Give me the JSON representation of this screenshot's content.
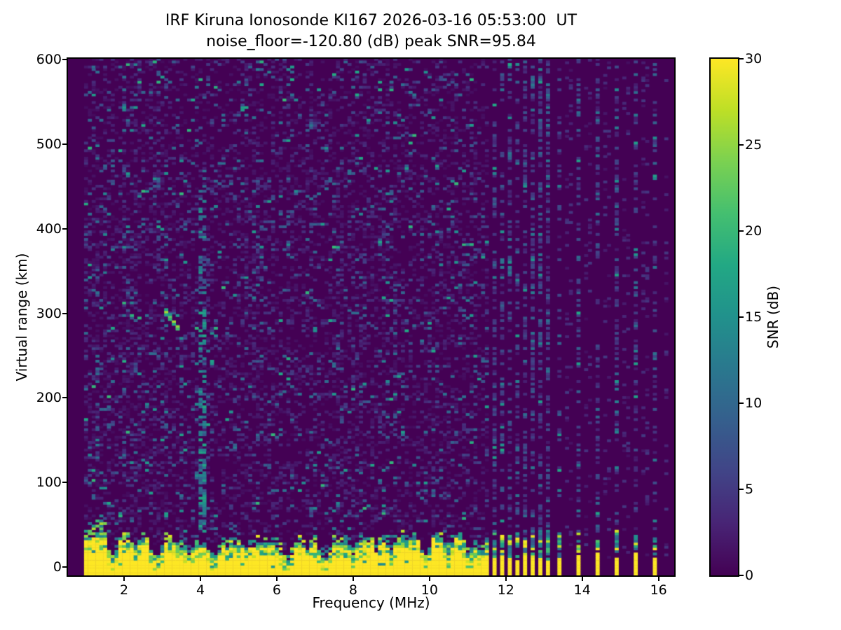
{
  "chart": {
    "title": "IRF Kiruna Ionosonde KI167 2026-03-16 05:53:00  UT",
    "subtitle": "noise_floor=-120.80 (dB) peak SNR=95.84",
    "xlabel": "Frequency (MHz)",
    "ylabel": "Virtual range (km)",
    "colorbar_label": "SNR (dB)"
  },
  "chart_data": {
    "type": "heatmap",
    "title": "IRF Kiruna Ionosonde KI167 2026-03-16 05:53:00  UT",
    "subtitle": "noise_floor=-120.80 (dB) peak SNR=95.84",
    "xlabel": "Frequency (MHz)",
    "ylabel": "Virtual range (km)",
    "xlim": [
      0.53,
      16.41
    ],
    "ylim": [
      -10,
      601
    ],
    "x_ticks": [
      2,
      4,
      6,
      8,
      10,
      12,
      14,
      16
    ],
    "y_ticks": [
      0,
      100,
      200,
      300,
      400,
      500,
      600
    ],
    "noise_floor_db": -120.8,
    "peak_snr_db": 95.84,
    "colorbar": {
      "label": "SNR (dB)",
      "min": 0,
      "max": 30,
      "ticks": [
        0,
        5,
        10,
        15,
        20,
        25,
        30
      ]
    },
    "colormap": {
      "name": "viridis",
      "stops": [
        {
          "t": 0.0,
          "color": "#440154"
        },
        {
          "t": 0.1,
          "color": "#482475"
        },
        {
          "t": 0.2,
          "color": "#414487"
        },
        {
          "t": 0.3,
          "color": "#355f8d"
        },
        {
          "t": 0.4,
          "color": "#2a788e"
        },
        {
          "t": 0.5,
          "color": "#21918c"
        },
        {
          "t": 0.6,
          "color": "#22a884"
        },
        {
          "t": 0.7,
          "color": "#44bf70"
        },
        {
          "t": 0.8,
          "color": "#7ad151"
        },
        {
          "t": 0.9,
          "color": "#bddf26"
        },
        {
          "t": 1.0,
          "color": "#fde725"
        }
      ]
    },
    "sweep": {
      "f_start": 1.0,
      "f_end": 11.55,
      "f_step": 0.1,
      "range_step_km": 3
    },
    "ground_clutter": {
      "top_km_base": 26,
      "top_km_min": 20,
      "top_km_max": 33,
      "transition_km": 14,
      "dips": [
        {
          "f": 1.7,
          "top_km": 4
        },
        {
          "f": 2.3,
          "top_km": 14
        },
        {
          "f": 2.85,
          "top_km": 6
        },
        {
          "f": 3.7,
          "top_km": 5
        },
        {
          "f": 4.35,
          "top_km": 7
        },
        {
          "f": 5.2,
          "top_km": 15
        },
        {
          "f": 6.25,
          "top_km": 4
        },
        {
          "f": 6.8,
          "top_km": 13
        },
        {
          "f": 7.25,
          "top_km": 6
        },
        {
          "f": 8.0,
          "top_km": 10
        },
        {
          "f": 8.6,
          "top_km": 14
        },
        {
          "f": 9.0,
          "top_km": 12
        },
        {
          "f": 9.9,
          "top_km": 5
        },
        {
          "f": 10.5,
          "top_km": 13
        },
        {
          "f": 11.05,
          "top_km": 9
        },
        {
          "f": 11.35,
          "top_km": 12
        }
      ]
    },
    "burst_frequencies": [
      11.7,
      11.9,
      12.1,
      12.3,
      12.5,
      12.7,
      12.9,
      13.1,
      13.4,
      13.9,
      14.4,
      14.9,
      15.4,
      15.9
    ],
    "faint_frequencies": [
      13.65,
      14.15,
      14.65,
      15.15,
      15.65,
      16.2
    ],
    "rfi_stripes": [
      {
        "f": 4.05,
        "km_lo": 35,
        "km_hi": 460,
        "density": 0.42,
        "snr_lo": 6,
        "snr_hi": 16
      }
    ],
    "echo_trace": {
      "f_lo": 3.1,
      "f_hi": 3.45,
      "km_hi": 300,
      "km_lo": 280,
      "snr": 24
    },
    "background_noise": {
      "density": 0.3,
      "seed": 42
    }
  }
}
